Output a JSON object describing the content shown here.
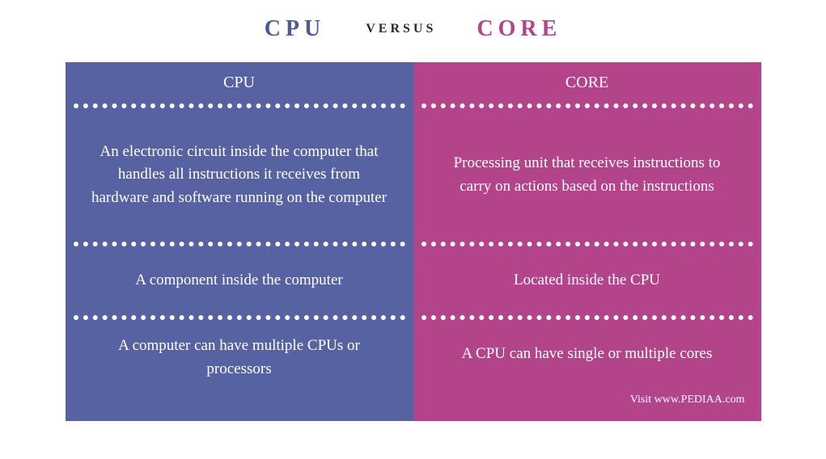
{
  "header": {
    "left_label": "CPU",
    "middle_label": "VERSUS",
    "right_label": "CORE",
    "left_color": "#4d5a99",
    "middle_color": "#2a2a2a",
    "right_color": "#b4448a"
  },
  "comparison": {
    "type": "comparison-table",
    "columns": 2,
    "left": {
      "title": "CPU",
      "bg_color": "#5762a3",
      "text_color": "#ffffff",
      "divider_color": "#ffffff",
      "rows": [
        "An electronic circuit inside the computer that handles all instructions it receives from hardware and software running on the computer",
        "A component inside the computer",
        "A computer can have multiple CPUs or processors"
      ]
    },
    "right": {
      "title": "CORE",
      "bg_color": "#b4448a",
      "text_color": "#ffffff",
      "divider_color": "#ffffff",
      "rows": [
        "Processing unit that receives instructions to carry on actions based on the instructions",
        "Located inside the CPU",
        "A CPU can have single or multiple cores"
      ]
    }
  },
  "footer": {
    "credit_text": "Visit www.PEDIAA.com",
    "credit_color": "#ffffff"
  },
  "styling": {
    "page_bg": "#ffffff",
    "header_fontsize": 28,
    "versus_fontsize": 16,
    "col_header_fontsize": 20,
    "body_fontsize": 19,
    "letter_spacing_header": 6,
    "divider_style": "dotted",
    "divider_width": 6
  }
}
